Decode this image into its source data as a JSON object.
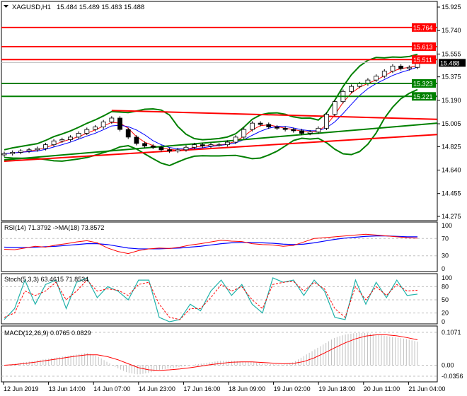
{
  "header": {
    "symbol": "XAGUSD,H1",
    "ohlc": "15.484 15.489 15.483 15.488"
  },
  "colors": {
    "bull": "#008000",
    "bear": "#008000",
    "resistance": "#ff0000",
    "support": "#008000",
    "rsi": "#ff0000",
    "rsi_ma": "#0000ff",
    "stoch_main": "#20b2aa",
    "stoch_signal": "#ff0000",
    "macd_hist": "#c0c0c0",
    "macd_signal": "#ff0000",
    "current": "#000000"
  },
  "chart_data": [
    {
      "type": "candlestick",
      "title": "XAGUSD,H1",
      "ylim": [
        14.275,
        15.925
      ],
      "y_ticks": [
        "15.925",
        "15.740",
        "15.555",
        "15.375",
        "15.190",
        "15.005",
        "14.825",
        "14.640",
        "14.455",
        "14.275"
      ],
      "x_ticks": [
        "12 Jun 2019",
        "13 Jun 14:00",
        "14 Jun 07:00",
        "14 Jun 23:00",
        "17 Jun 16:00",
        "18 Jun 09:00",
        "19 Jun 02:00",
        "19 Jun 18:00",
        "20 Jun 11:00",
        "21 Jun 04:00"
      ],
      "closes": [
        14.77,
        14.78,
        14.79,
        14.8,
        14.81,
        14.84,
        14.87,
        14.88,
        14.9,
        14.93,
        14.96,
        14.98,
        15.02,
        15.05,
        14.96,
        14.9,
        14.85,
        14.83,
        14.82,
        14.8,
        14.79,
        14.8,
        14.82,
        14.84,
        14.83,
        14.84,
        14.84,
        14.86,
        14.9,
        14.96,
        15.01,
        15.0,
        14.98,
        14.97,
        14.96,
        14.95,
        14.93,
        14.94,
        14.97,
        15.08,
        15.18,
        15.26,
        15.3,
        15.32,
        15.35,
        15.38,
        15.42,
        15.46,
        15.44,
        15.45,
        15.488
      ],
      "current_price": "15.488",
      "resistance_levels": [
        "15.764",
        "15.613",
        "15.511"
      ],
      "support_levels": [
        "15.323",
        "15.221"
      ],
      "trendlines": [
        {
          "color": "red",
          "from": [
            13,
            15.11
          ],
          "to": [
            51,
            15.04
          ]
        },
        {
          "color": "red",
          "from": [
            0,
            14.71
          ],
          "to": [
            51,
            14.92
          ]
        },
        {
          "color": "green",
          "from": [
            0,
            14.72
          ],
          "to": [
            51,
            15.01
          ]
        }
      ]
    },
    {
      "type": "line",
      "title": "RSI(14) 71.3792  ->MA(18) 73.8572",
      "ylim": [
        0,
        100
      ],
      "y_ticks": [
        "100",
        "70",
        "30",
        "0"
      ],
      "series": [
        {
          "values": [
            45,
            44,
            48,
            52,
            50,
            55,
            58,
            62,
            65,
            60,
            48,
            40,
            35,
            42,
            46,
            48,
            47,
            50,
            55,
            58,
            62,
            66,
            64,
            63,
            58,
            56,
            55,
            52,
            54,
            62,
            70,
            72,
            74,
            76,
            78,
            80,
            78,
            76,
            74,
            72,
            71
          ]
        },
        {
          "values": [
            50,
            49,
            49,
            50,
            51,
            52,
            54,
            56,
            58,
            58,
            56,
            52,
            48,
            46,
            46,
            46,
            47,
            48,
            50,
            52,
            55,
            58,
            60,
            61,
            61,
            60,
            59,
            57,
            56,
            57,
            60,
            64,
            68,
            71,
            73,
            75,
            76,
            76,
            75,
            74,
            74
          ]
        }
      ]
    },
    {
      "type": "line",
      "title": "Stoch(5,3,3) 63.4615 71.8534",
      "ylim": [
        0,
        100
      ],
      "y_ticks": [
        "100",
        "80",
        "50",
        "20",
        "0"
      ],
      "series": [
        {
          "values": [
            5,
            30,
            95,
            40,
            85,
            95,
            30,
            90,
            100,
            55,
            80,
            70,
            50,
            95,
            95,
            10,
            0,
            5,
            40,
            25,
            70,
            95,
            60,
            85,
            40,
            20,
            100,
            90,
            95,
            60,
            95,
            70,
            10,
            5,
            95,
            40,
            90,
            55,
            95,
            60,
            63
          ]
        },
        {
          "values": [
            10,
            20,
            70,
            60,
            70,
            90,
            50,
            70,
            95,
            70,
            75,
            72,
            60,
            85,
            90,
            40,
            10,
            5,
            30,
            30,
            55,
            85,
            70,
            80,
            50,
            30,
            85,
            90,
            92,
            70,
            90,
            75,
            30,
            10,
            80,
            50,
            80,
            60,
            85,
            70,
            72
          ]
        }
      ]
    },
    {
      "type": "bar",
      "title": "MACD(12,26,9) 0.0765 0.0829",
      "ylim": [
        -0.0356,
        0.1071
      ],
      "y_ticks": [
        "0.1071",
        "0.00",
        "-0.0356"
      ],
      "histogram": [
        0.0,
        0.005,
        0.01,
        0.015,
        0.02,
        0.025,
        0.03,
        0.035,
        0.04,
        0.03,
        0.01,
        -0.01,
        -0.025,
        -0.03,
        -0.025,
        -0.015,
        -0.01,
        -0.005,
        0.0,
        0.005,
        0.01,
        0.015,
        0.015,
        0.012,
        0.01,
        0.005,
        0.003,
        0.002,
        0.01,
        0.03,
        0.05,
        0.07,
        0.09,
        0.1,
        0.105,
        0.105,
        0.1,
        0.095,
        0.09,
        0.085,
        0.0765
      ],
      "signal": [
        0.0,
        0.002,
        0.006,
        0.01,
        0.015,
        0.02,
        0.025,
        0.03,
        0.034,
        0.034,
        0.028,
        0.018,
        0.005,
        -0.008,
        -0.015,
        -0.017,
        -0.015,
        -0.012,
        -0.008,
        -0.003,
        0.002,
        0.006,
        0.01,
        0.011,
        0.011,
        0.009,
        0.007,
        0.005,
        0.006,
        0.012,
        0.024,
        0.04,
        0.057,
        0.073,
        0.086,
        0.095,
        0.099,
        0.099,
        0.096,
        0.09,
        0.0829
      ]
    }
  ]
}
